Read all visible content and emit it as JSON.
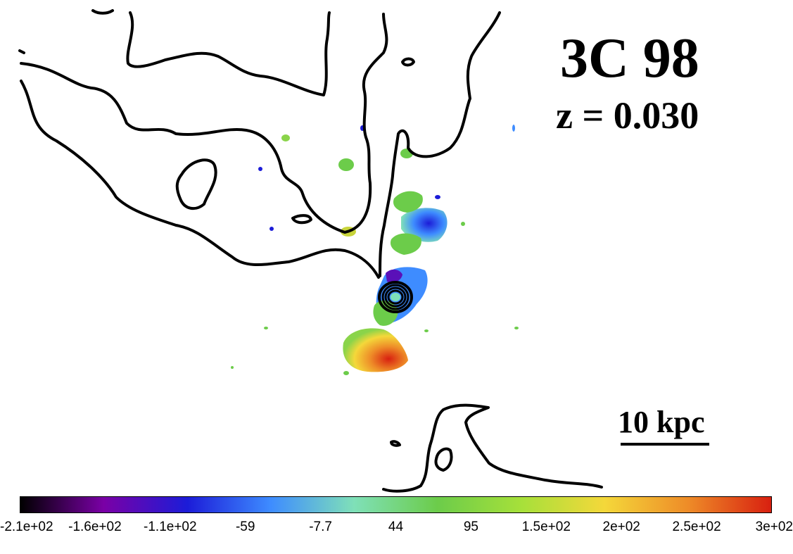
{
  "figure": {
    "source_name": "3C 98",
    "redshift_label": "z = 0.030",
    "scale_bar_label": "10 kpc"
  },
  "colorbar": {
    "ticks": [
      "-2.1e+02",
      "-1.6e+02",
      "-1.1e+02",
      "-59",
      "-7.7",
      "44",
      "95",
      "1.5e+02",
      "2e+02",
      "2.5e+02",
      "3e+02"
    ],
    "colors": [
      "#000000",
      "#7a00a6",
      "#1c1cd8",
      "#3e8cff",
      "#7fe0b8",
      "#6ccc4a",
      "#a6e03a",
      "#f4d83a",
      "#ee8c28",
      "#d82010"
    ]
  },
  "palette": {
    "contour": "#000000",
    "core": "#7fe0b8"
  }
}
